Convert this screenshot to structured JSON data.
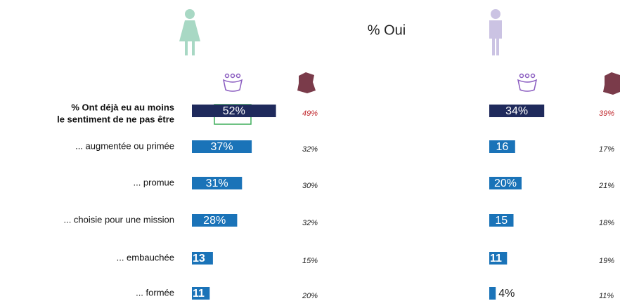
{
  "chart_data": {
    "type": "bar",
    "title": "% Oui",
    "categories": [
      [
        "% Ont déjà eu au moins",
        "le sentiment de ne pas être"
      ],
      "... augmentée ou primée",
      "... promue",
      "... choisie pour une mission",
      "... embauchée",
      "... formée"
    ],
    "xlim": [
      0,
      100
    ],
    "series": [
      {
        "colors": [
          "#1f2a5c",
          "#1a73b8",
          "#1a73b8",
          "#1a73b8",
          "#1a73b8",
          "#1a73b8"
        ],
        "values": [
          52,
          37,
          31,
          28,
          13,
          11
        ],
        "value_labels": [
          "52%",
          "37%",
          "31%",
          "28%",
          "13",
          "11"
        ],
        "reference_values": [
          49,
          32,
          30,
          32,
          15,
          20
        ],
        "reference_labels": [
          "49%",
          "32%",
          "30%",
          "32%",
          "15%",
          "20%"
        ]
      },
      {
        "colors": [
          "#1f2a5c",
          "#1a73b8",
          "#1a73b8",
          "#1a73b8",
          "#1a73b8",
          "#1a73b8"
        ],
        "values": [
          34,
          16,
          20,
          15,
          11,
          4
        ],
        "value_labels": [
          "34%",
          "16",
          "20%",
          "15",
          "11",
          "4%"
        ],
        "reference_values": [
          39,
          17,
          21,
          18,
          19,
          11
        ],
        "reference_labels": [
          "39%",
          "17%",
          "21%",
          "18%",
          "19%",
          "11%"
        ]
      }
    ],
    "reference_highlight_color": "#c0282d"
  }
}
